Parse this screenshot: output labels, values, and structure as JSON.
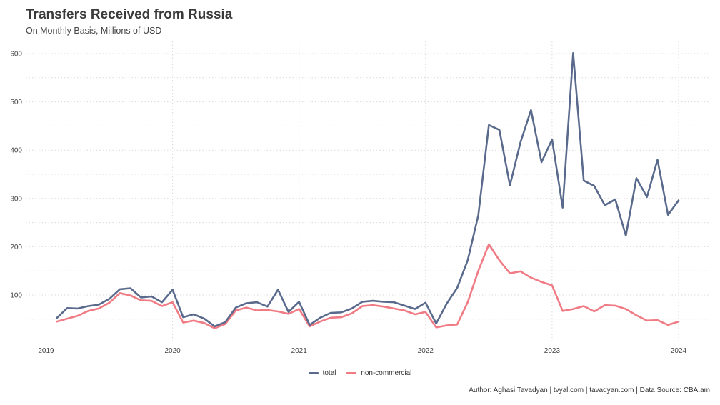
{
  "header": {
    "title": "Transfers Received from Russia",
    "subtitle": "On Monthly Basis, Millions of USD"
  },
  "caption": "Author: Aghasi Tavadyan   |   tvyal.com   |   tavadyan.com   |   Data Source: CBA.am",
  "colors": {
    "total": "#5a6a8c",
    "non_commercial": "#f07b85",
    "grid": "#d9d9d9"
  },
  "chart_data": {
    "type": "line",
    "xlabel": "",
    "ylabel": "",
    "ylim": [
      0,
      620
    ],
    "y_ticks": [
      100,
      200,
      300,
      400,
      500,
      600
    ],
    "x_ticks": [
      "2019",
      "2020",
      "2021",
      "2022",
      "2023",
      "2024"
    ],
    "grid": true,
    "legend_position": "bottom",
    "x": [
      "2019-02",
      "2019-03",
      "2019-04",
      "2019-05",
      "2019-06",
      "2019-07",
      "2019-08",
      "2019-09",
      "2019-10",
      "2019-11",
      "2019-12",
      "2020-01",
      "2020-02",
      "2020-03",
      "2020-04",
      "2020-05",
      "2020-06",
      "2020-07",
      "2020-08",
      "2020-09",
      "2020-10",
      "2020-11",
      "2020-12",
      "2021-01",
      "2021-02",
      "2021-03",
      "2021-04",
      "2021-05",
      "2021-06",
      "2021-07",
      "2021-08",
      "2021-09",
      "2021-10",
      "2021-11",
      "2021-12",
      "2022-01",
      "2022-02",
      "2022-03",
      "2022-04",
      "2022-05",
      "2022-06",
      "2022-07",
      "2022-08",
      "2022-09",
      "2022-10",
      "2022-11",
      "2022-12",
      "2023-01",
      "2023-02",
      "2023-03",
      "2023-04",
      "2023-05",
      "2023-06",
      "2023-07",
      "2023-08",
      "2023-09",
      "2023-10",
      "2023-11",
      "2023-12",
      "2024-01"
    ],
    "series": [
      {
        "name": "total",
        "values": [
          52,
          73,
          72,
          77,
          80,
          92,
          112,
          114,
          95,
          97,
          85,
          111,
          54,
          60,
          51,
          35,
          44,
          74,
          83,
          85,
          76,
          111,
          65,
          86,
          38,
          53,
          63,
          64,
          72,
          86,
          88,
          86,
          85,
          78,
          71,
          84,
          41,
          82,
          115,
          172,
          265,
          452,
          442,
          327,
          416,
          483,
          375,
          422,
          281,
          601,
          337,
          326,
          286,
          298,
          223,
          342,
          303,
          380,
          266,
          296
        ]
      },
      {
        "name": "non-commercial",
        "values": [
          45,
          51,
          57,
          67,
          72,
          84,
          104,
          99,
          89,
          88,
          77,
          85,
          43,
          47,
          42,
          31,
          40,
          68,
          74,
          68,
          69,
          66,
          61,
          71,
          35,
          45,
          53,
          54,
          62,
          77,
          79,
          76,
          72,
          68,
          60,
          65,
          33,
          37,
          39,
          85,
          150,
          205,
          172,
          145,
          149,
          136,
          127,
          120,
          67,
          71,
          77,
          66,
          79,
          78,
          71,
          58,
          47,
          48,
          38,
          45
        ]
      }
    ]
  }
}
